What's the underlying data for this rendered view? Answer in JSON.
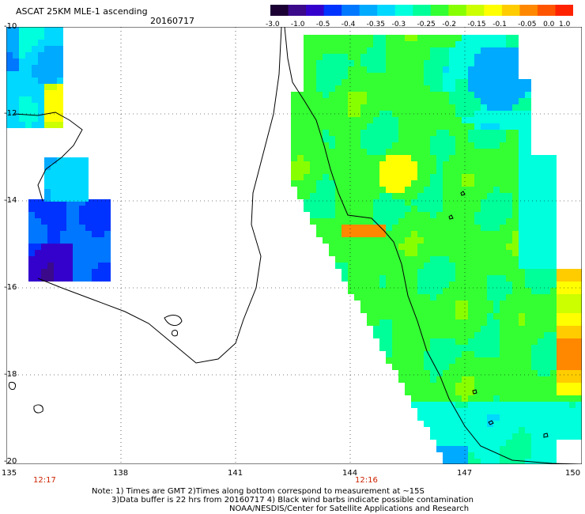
{
  "header": {
    "title": "ASCAT 25KM MLE-1 ascending",
    "date": "20160717"
  },
  "colorbar": {
    "ticks": [
      "-3.0",
      "-1.0",
      "-0.5",
      "-0.4",
      "-0.35",
      "-0.3",
      "-0.25",
      "-0.2",
      "-0.15",
      "-0.1",
      "-0.05",
      "0.0",
      "1.0"
    ],
    "colors": [
      "#1a0033",
      "#3a0a8a",
      "#3300cc",
      "#0033ff",
      "#0077ff",
      "#00aaff",
      "#00d8ff",
      "#00ffdd",
      "#00ff99",
      "#33ff33",
      "#88ff00",
      "#ccff00",
      "#ffff00",
      "#ffcc00",
      "#ff8800",
      "#ff5500",
      "#ff2200"
    ]
  },
  "axes": {
    "y_labels": [
      "-10",
      "-12",
      "-14",
      "-16",
      "-18",
      "-20"
    ],
    "x_labels": [
      "135",
      "138",
      "141",
      "144",
      "147",
      "150"
    ],
    "times": [
      "12:17",
      "12:16"
    ]
  },
  "notes": {
    "line1": "Note: 1) Times are GMT 2)Times along bottom correspond to measurement at ~15S",
    "line2": "3)Data buffer is 22 hrs from 20160717 4) Black wind barbs indicate possible contamination",
    "line3": "NOAA/NESDIS/Center for Satellite Applications and Research"
  }
}
